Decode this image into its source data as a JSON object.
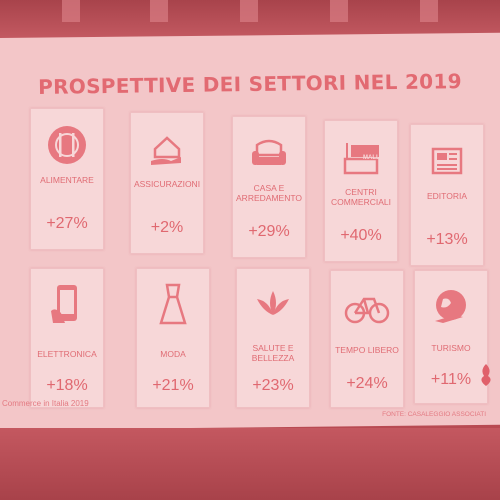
{
  "slide": {
    "title": "PROSPETTIVE DEI SETTORI NEL 2019",
    "footer_left": "Commerce in Italia 2019",
    "footer_right": "FONTE: CASALEGGIO ASSOCIATI"
  },
  "colors": {
    "accent": "#e26a72",
    "card_bg": "#f7d7d8",
    "screen_bg": "#f3c6c8"
  },
  "sectors": [
    {
      "label": "ALIMENTARE",
      "value": "+27%",
      "icon": "plate-cutlery-icon"
    },
    {
      "label": "ASSICURAZIONI",
      "value": "+2%",
      "icon": "house-hand-icon"
    },
    {
      "label": "CASA E\nARREDAMENTO",
      "value": "+29%",
      "icon": "armchair-icon"
    },
    {
      "label": "CENTRI\nCOMMERCIALI",
      "value": "+40%",
      "icon": "mall-icon"
    },
    {
      "label": "EDITORIA",
      "value": "+13%",
      "icon": "newspaper-icon"
    },
    {
      "label": "ELETTRONICA",
      "value": "+18%",
      "icon": "smartphone-icon"
    },
    {
      "label": "MODA",
      "value": "+21%",
      "icon": "dress-icon"
    },
    {
      "label": "SALUTE E\nBELLEZZA",
      "value": "+23%",
      "icon": "lotus-icon"
    },
    {
      "label": "TEMPO LIBERO",
      "value": "+24%",
      "icon": "bicycle-icon"
    },
    {
      "label": "TURISMO",
      "value": "+11%",
      "icon": "globe-plane-icon"
    }
  ],
  "mall_sign": "MALL"
}
